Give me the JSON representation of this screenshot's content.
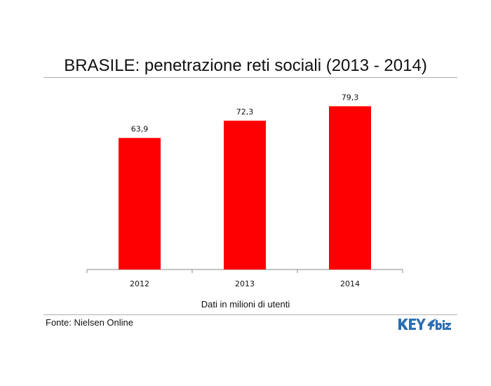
{
  "chart_data": {
    "type": "bar",
    "title": "BRASILE: penetrazione reti sociali (2013 - 2014)",
    "categories": [
      "2012",
      "2013",
      "2014"
    ],
    "values": [
      63.9,
      72.3,
      79.3
    ],
    "value_labels": [
      "63,9",
      "72,3",
      "79,3"
    ],
    "xlabel": "Dati in milioni di utenti",
    "ylabel": "",
    "ylim": [
      0,
      90
    ],
    "grid": false,
    "legend": "none",
    "bar_color": "#ff0000"
  },
  "footer": {
    "source": "Fonte: Nielsen Online",
    "logo_text": "KEY4biz"
  },
  "colors": {
    "bar": "#ff0000",
    "axis": "#888888",
    "text": "#111111",
    "logo": "#2d6fb3"
  }
}
